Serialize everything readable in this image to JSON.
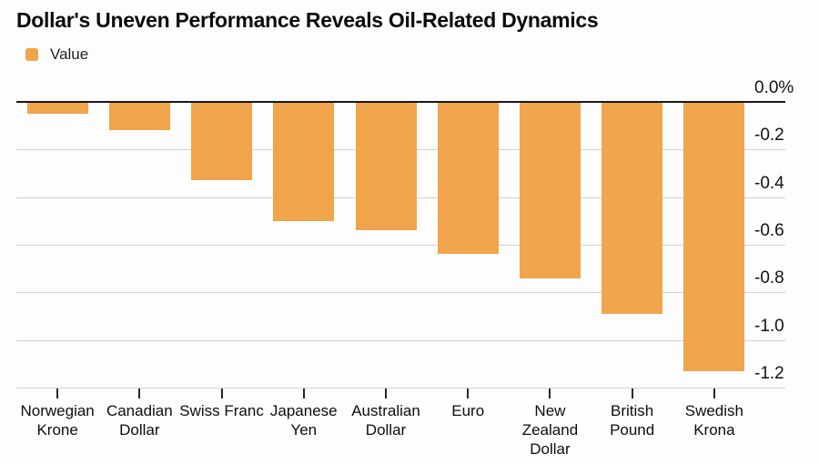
{
  "title": "Dollar's Uneven Performance Reveals Oil-Related Dynamics",
  "legend": {
    "label": "Value",
    "swatch_color": "#F0A44C"
  },
  "chart_data": {
    "type": "bar",
    "title": "Dollar's Uneven Performance Reveals Oil-Related Dynamics",
    "series_name": "Value",
    "categories": [
      "Norwegian Krone",
      "Canadian Dollar",
      "Swiss Franc",
      "Japanese Yen",
      "Australian Dollar",
      "Euro",
      "New Zealand Dollar",
      "British Pound",
      "Swedish Krona"
    ],
    "values": [
      -0.05,
      -0.12,
      -0.33,
      -0.5,
      -0.54,
      -0.64,
      -0.74,
      -0.89,
      -1.13
    ],
    "unit": "%",
    "ylim": [
      -1.2,
      0
    ],
    "yticks": [
      0,
      -0.2,
      -0.4,
      -0.6,
      -0.8,
      -1.0,
      -1.2
    ],
    "ytick_labels": [
      "0.0%",
      "-0.2",
      "-0.4",
      "-0.6",
      "-0.8",
      "-1.0",
      "-1.2"
    ],
    "bar_color": "#F0A44C",
    "gridline_color": "#d2d2d2",
    "zero_line_color": "#15181d",
    "grid": "on",
    "legend_position": "top-left",
    "ytick_side": "right"
  }
}
